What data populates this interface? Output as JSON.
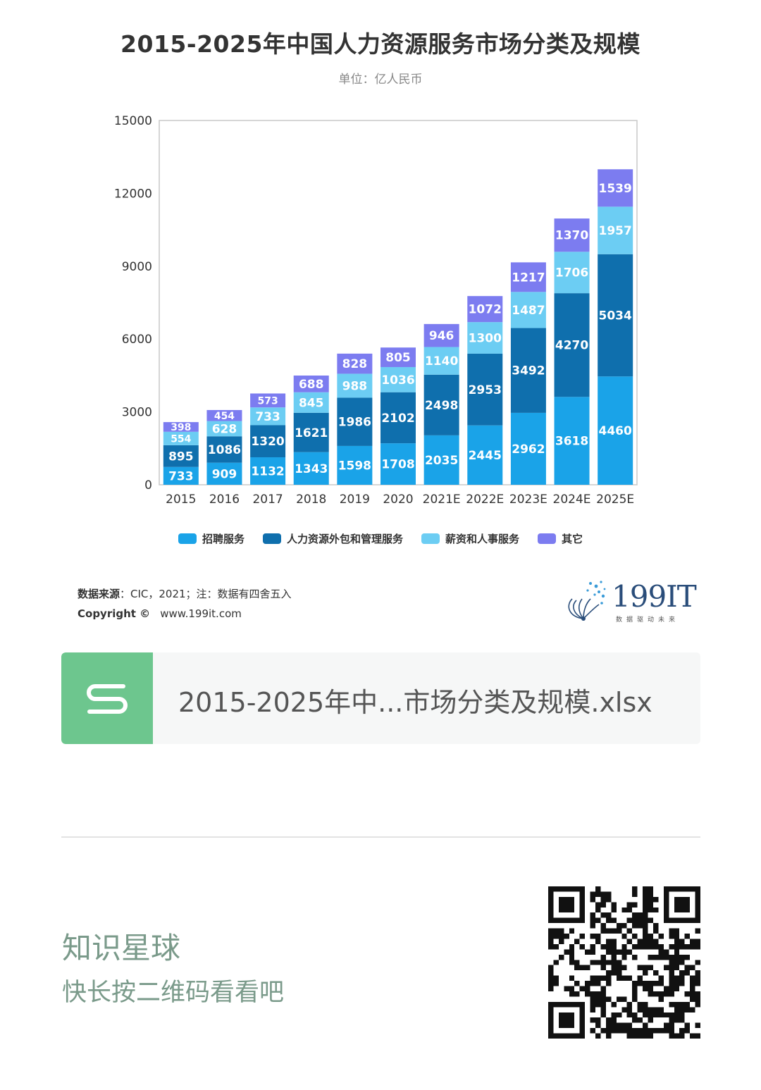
{
  "title": "2015-2025年中国人力资源服务市场分类及规模",
  "subtitle": "单位：亿人民币",
  "chart_data": {
    "type": "bar",
    "stacked": true,
    "categories": [
      "2015",
      "2016",
      "2017",
      "2018",
      "2019",
      "2020",
      "2021E",
      "2022E",
      "2023E",
      "2024E",
      "2025E"
    ],
    "series": [
      {
        "name": "招聘服务",
        "color": "#1aa3e8",
        "values": [
          733,
          909,
          1132,
          1343,
          1598,
          1708,
          2035,
          2445,
          2962,
          3618,
          4460
        ]
      },
      {
        "name": "人力资源外包和管理服务",
        "color": "#0f6fad",
        "values": [
          895,
          1086,
          1320,
          1621,
          1986,
          2102,
          2498,
          2953,
          3492,
          4270,
          5034
        ]
      },
      {
        "name": "薪资和人事服务",
        "color": "#6ccdf3",
        "values": [
          554,
          628,
          733,
          845,
          988,
          1036,
          1140,
          1300,
          1487,
          1706,
          1957
        ]
      },
      {
        "name": "其它",
        "color": "#7c7cf0",
        "values": [
          398,
          454,
          573,
          688,
          828,
          805,
          946,
          1072,
          1217,
          1370,
          1539
        ]
      }
    ],
    "yticks": [
      0,
      3000,
      6000,
      9000,
      12000,
      15000
    ],
    "ylim": [
      0,
      15000
    ],
    "legend_position": "bottom",
    "grid": false
  },
  "source": {
    "label": "数据来源",
    "text": "：CIC，2021；注：数据有四舍五入"
  },
  "copyright": {
    "label": "Copyright ©",
    "url": "www.199it.com"
  },
  "logo": {
    "name": "199IT",
    "tagline": "数据驱动未来"
  },
  "file": {
    "icon": "spreadsheet-s-icon",
    "name": "2015-2025年中...市场分类及规模.xlsx"
  },
  "promo": {
    "title": "知识星球",
    "subtitle": "快长按二维码看看吧"
  },
  "qr": {
    "icon": "qr-code-icon"
  }
}
